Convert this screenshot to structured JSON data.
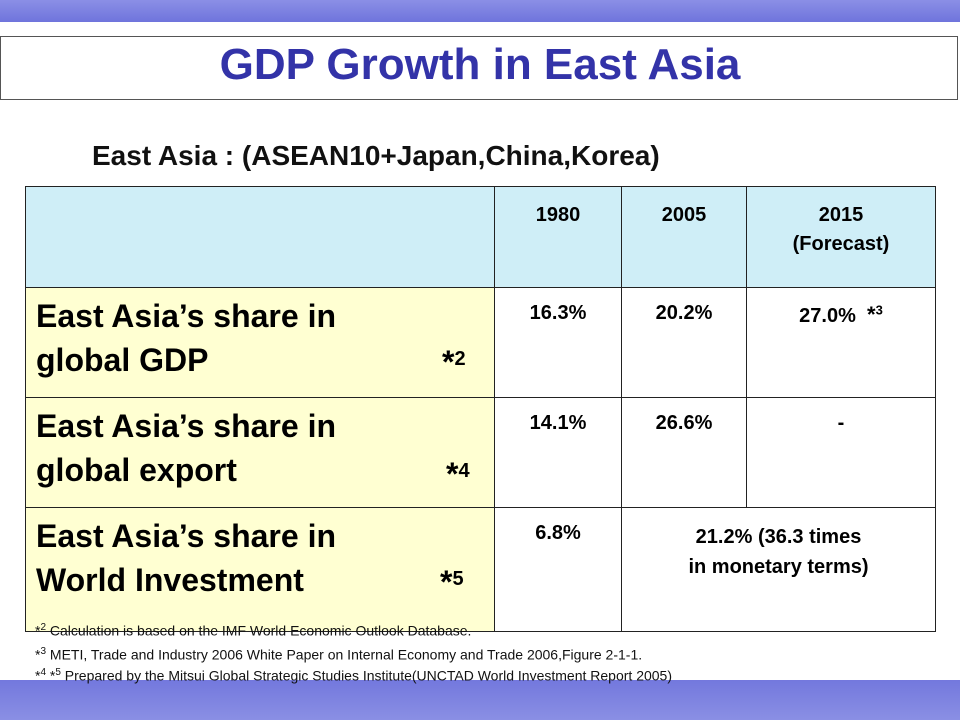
{
  "slide": {
    "title": "GDP Growth in East Asia",
    "subtitle": "East Asia : (ASEAN10+Japan,China,Korea)"
  },
  "table": {
    "headers": [
      "1980",
      "2005",
      "2015\n(Forecast)"
    ],
    "header_2015_line1": "2015",
    "header_2015_line2": "(Forecast)",
    "rows": [
      {
        "label_line1": "East Asia’s share in",
        "label_line2": "global GDP",
        "star": "*",
        "note": "2",
        "v1980": "16.3%",
        "v2005": "20.2%",
        "v2015": "27.0%",
        "v2015_star": "*",
        "v2015_note": "3"
      },
      {
        "label_line1": "East Asia’s share in",
        "label_line2": "global export",
        "star": "*",
        "note": "4",
        "v1980": "14.1%",
        "v2005": "26.6%",
        "v2015": "-"
      },
      {
        "label_line1": "East Asia’s share in",
        "label_line2": "World Investment",
        "star": "*",
        "note": "5",
        "v1980": "6.8%",
        "v2005_2015_line1": "21.2% (36.3 times",
        "v2005_2015_line2": "in monetary terms)"
      }
    ]
  },
  "footnotes": {
    "f1_star": "*",
    "f1_note": "2",
    "f1_text": " Calculation is based on the IMF World Economic Outlook Database.",
    "f2_star": "*",
    "f2_note": "3",
    "f2_text": " METI, Trade and Industry 2006 White Paper on Internal Economy and Trade 2006,Figure 2-1-1.",
    "f3_star1": "*",
    "f3_note1": "4",
    "f3_star2": " *",
    "f3_note2": "5",
    "f3_text": " Prepared by the Mitsui Global Strategic Studies Institute(UNCTAD World Investment Report 2005)"
  },
  "colors": {
    "band": "#7378dd",
    "title": "#3333a8",
    "header_fill": "#cfeef7",
    "label_fill": "#ffffd2"
  }
}
